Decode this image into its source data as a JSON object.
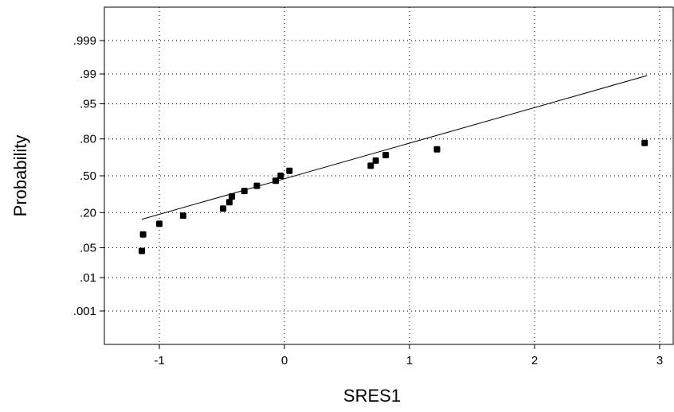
{
  "chart_data": {
    "type": "scatter",
    "title": "",
    "xlabel": "SRES1",
    "ylabel": "Probability",
    "xlim": [
      -1.45,
      3.1
    ],
    "x_ticks": [
      -1,
      0,
      1,
      2,
      3
    ],
    "y_scale": "normal-probability",
    "y_ticks": [
      {
        "p": 0.001,
        "label": ".001"
      },
      {
        "p": 0.01,
        "label": ".01"
      },
      {
        "p": 0.05,
        "label": ".05"
      },
      {
        "p": 0.2,
        "label": ".20"
      },
      {
        "p": 0.5,
        "label": ".50"
      },
      {
        "p": 0.8,
        "label": ".80"
      },
      {
        "p": 0.95,
        "label": ".95"
      },
      {
        "p": 0.99,
        "label": ".99"
      },
      {
        "p": 0.999,
        "label": ".999"
      }
    ],
    "grid": true,
    "points": [
      {
        "x": -1.14,
        "p": 0.043
      },
      {
        "x": -1.13,
        "p": 0.09
      },
      {
        "x": -1.0,
        "p": 0.136
      },
      {
        "x": -0.81,
        "p": 0.181
      },
      {
        "x": -0.49,
        "p": 0.227
      },
      {
        "x": -0.44,
        "p": 0.273
      },
      {
        "x": -0.42,
        "p": 0.318
      },
      {
        "x": -0.32,
        "p": 0.364
      },
      {
        "x": -0.22,
        "p": 0.409
      },
      {
        "x": -0.07,
        "p": 0.455
      },
      {
        "x": -0.03,
        "p": 0.5
      },
      {
        "x": 0.04,
        "p": 0.545
      },
      {
        "x": 0.69,
        "p": 0.591
      },
      {
        "x": 0.73,
        "p": 0.636
      },
      {
        "x": 0.81,
        "p": 0.682
      },
      {
        "x": 1.22,
        "p": 0.727
      },
      {
        "x": 2.88,
        "p": 0.773
      }
    ],
    "fit_line": {
      "x": [
        -1.14,
        2.9
      ],
      "p": [
        0.16,
        0.989
      ]
    }
  }
}
